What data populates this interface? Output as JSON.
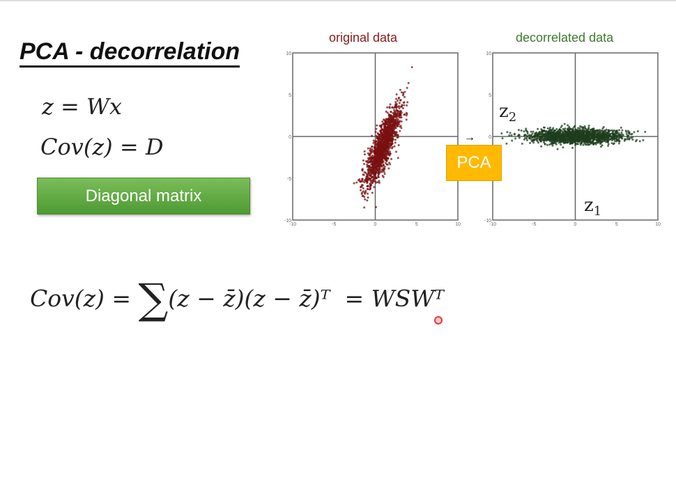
{
  "slide": {
    "title": "PCA - decorrelation",
    "eq_z": "z = Wx",
    "eq_cov": "Cov(z) = D",
    "diag_button": "Diagonal matrix",
    "eq_bottom_left": "Cov(z) = ",
    "eq_bottom_sum": "∑",
    "eq_bottom_mid": "(z − z̄)(z − z̄)ᵀ",
    "eq_bottom_right": "= WSWᵀ",
    "pca_label": "PCA",
    "arrow": "→",
    "z1": "z",
    "z1_sub": "1",
    "z2": "z",
    "z2_sub": "2"
  },
  "chart_data": [
    {
      "type": "scatter",
      "title": "original data",
      "title_color": "#8b1a1a",
      "point_color": "#7a1010",
      "xlim": [
        -10,
        10
      ],
      "ylim": [
        -10,
        10
      ],
      "xticks": [
        -10,
        -5,
        0,
        5,
        10
      ],
      "yticks": [
        -10,
        -5,
        0,
        5,
        10
      ],
      "description": "correlated cloud along direction with slope ~2.5 through ~(1,-1)"
    },
    {
      "type": "scatter",
      "title": "decorrelated data",
      "title_color": "#3e7a2f",
      "point_color": "#1e3d1e",
      "xlim": [
        -10,
        10
      ],
      "ylim": [
        -10,
        10
      ],
      "xticks": [
        -10,
        -5,
        0,
        5,
        10
      ],
      "yticks": [
        -10,
        -5,
        0,
        5,
        10
      ],
      "description": "uncorrelated horizontal cloud centred at 0"
    }
  ]
}
